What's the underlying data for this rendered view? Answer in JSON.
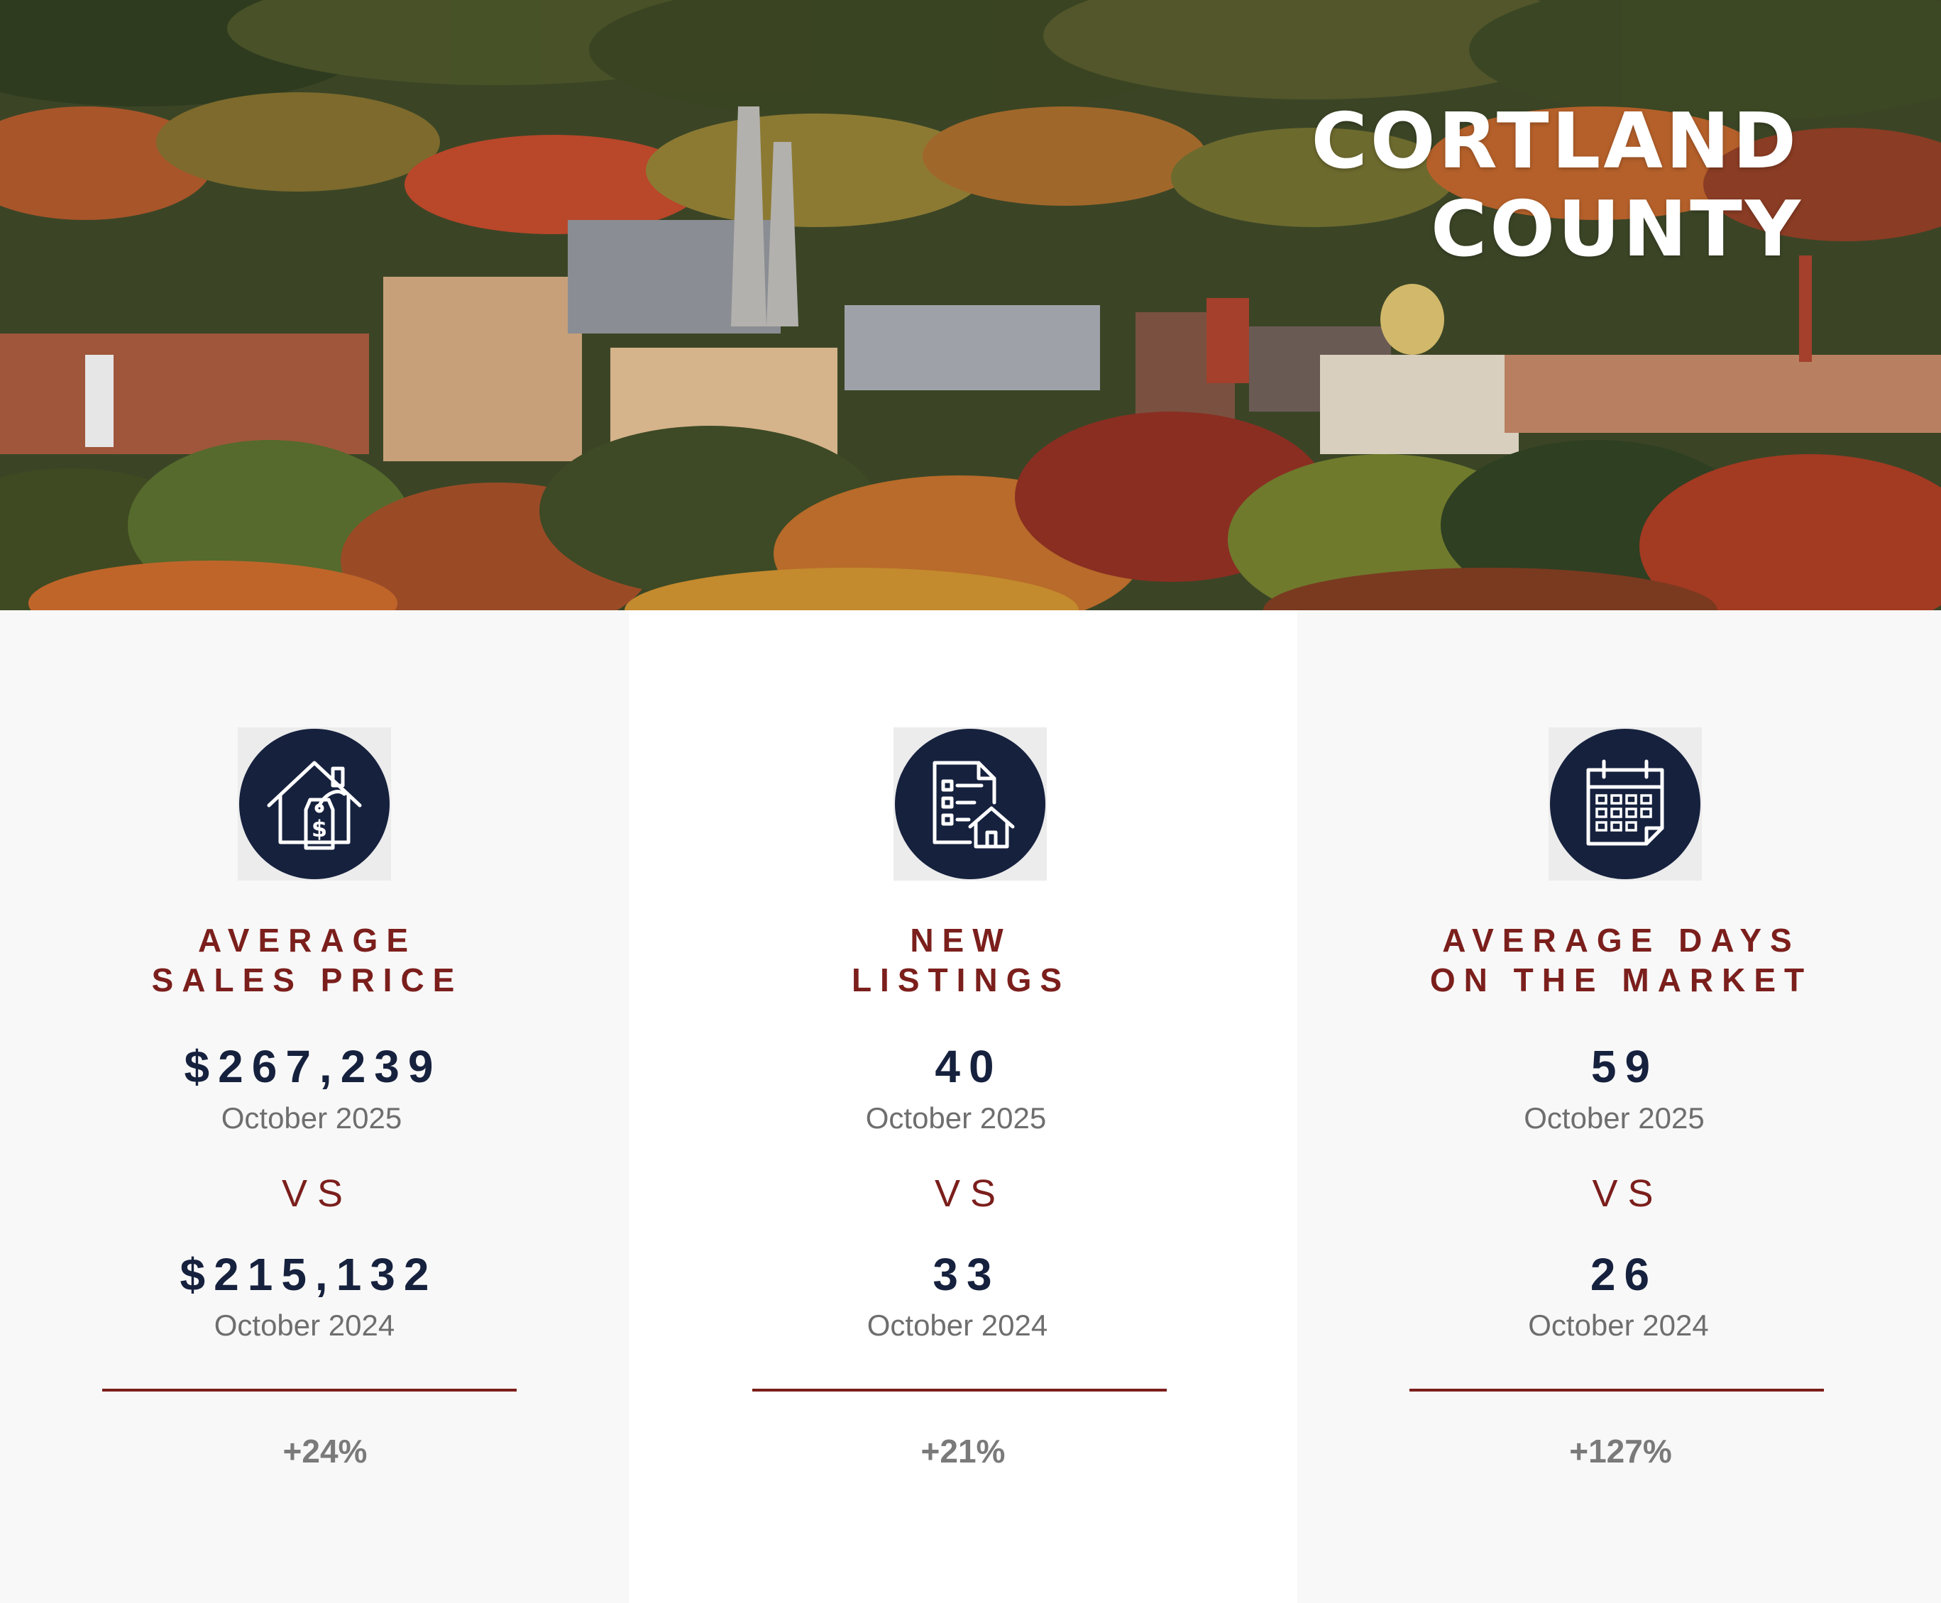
{
  "hero": {
    "title_line1": "CORTLAND",
    "title_line2": "COUNTY"
  },
  "metrics": [
    {
      "icon": "house-price-tag-icon",
      "label_line1": "AVERAGE",
      "label_line2": "SALES PRICE",
      "current_value": "$267,239",
      "current_period": "October 2025",
      "vs": "VS",
      "previous_value": "$215,132",
      "previous_period": "October 2024",
      "change": "+24%"
    },
    {
      "icon": "listing-document-house-icon",
      "label_line1": "NEW",
      "label_line2": "LISTINGS",
      "current_value": "40",
      "current_period": "October 2025",
      "vs": "VS",
      "previous_value": "33",
      "previous_period": "October 2024",
      "change": "+21%"
    },
    {
      "icon": "calendar-icon",
      "label_line1": "AVERAGE DAYS",
      "label_line2": "ON THE MARKET",
      "current_value": "59",
      "current_period": "October 2025",
      "vs": "VS",
      "previous_value": "26",
      "previous_period": "October 2024",
      "change": "+127%"
    }
  ],
  "colors": {
    "navy": "#16213e",
    "maroon": "#7b1f1c",
    "gray_text": "#6e6e6e",
    "panel_gray": "#f8f8f8"
  }
}
